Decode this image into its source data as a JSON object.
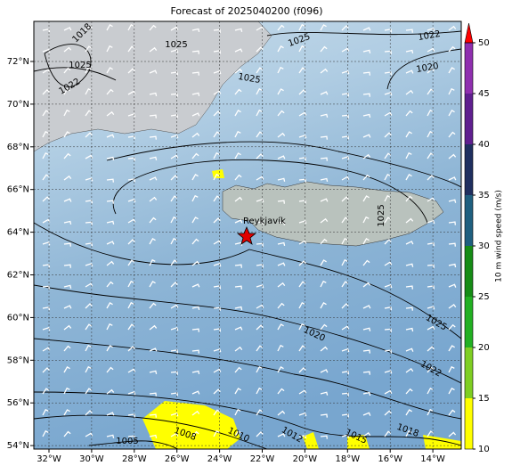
{
  "title": "Forecast of 2025040200 (f096)",
  "lon_labels": [
    "32°W",
    "30°W",
    "28°W",
    "26°W",
    "24°W",
    "22°W",
    "20°W",
    "18°W",
    "16°W",
    "14°W"
  ],
  "lat_labels": [
    "72°N",
    "70°N",
    "68°N",
    "66°N",
    "64°N",
    "62°N",
    "60°N",
    "58°N",
    "56°N",
    "54°N"
  ],
  "city": "Reykjavík",
  "contour_labels": [
    "1018",
    "1025",
    "1025",
    "1022",
    "1025",
    "1022",
    "1020",
    "1025",
    "1025",
    "1020",
    "1025",
    "1022",
    "1005",
    "1008",
    "1010",
    "1012",
    "1015",
    "1018"
  ],
  "colorbar": {
    "label": "10 m wind speed (m/s)",
    "lim": [
      10,
      50
    ],
    "ticks": [
      10,
      15,
      20,
      25,
      30,
      35,
      40,
      45,
      50
    ],
    "colors": [
      "#ffff00",
      "#7fce22",
      "#22b022",
      "#168c16",
      "#1f5f7f",
      "#1f2f5f",
      "#5f1f8f",
      "#8f2faf"
    ],
    "extend_color": "#ff0000"
  }
}
